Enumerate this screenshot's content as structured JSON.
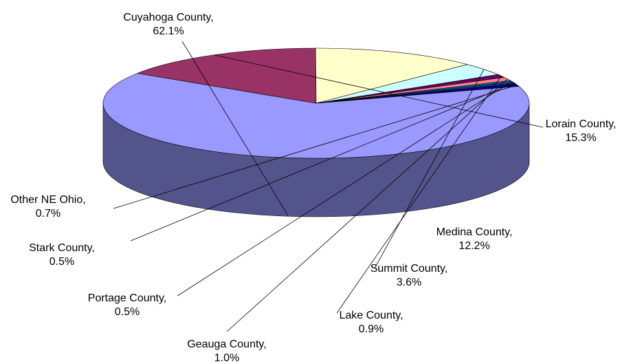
{
  "chart_data": {
    "type": "pie3d",
    "categories": [
      "Cuyahoga County,",
      "Lorain County,",
      "Medina County,",
      "Summit County,",
      "Lake County,",
      "Geauga County,",
      "Portage County,",
      "Stark County,",
      "Other NE Ohio,"
    ],
    "values": [
      62.1,
      15.3,
      12.2,
      3.6,
      0.9,
      1.0,
      0.5,
      0.5,
      0.7
    ],
    "value_labels": [
      "62.1%",
      "15.3%",
      "12.2%",
      "3.6%",
      "0.9%",
      "1.0%",
      "0.5%",
      "0.5%",
      "0.7%"
    ],
    "colors": [
      "#9999ff",
      "#993366",
      "#ffffcc",
      "#ccffff",
      "#660066",
      "#ff8080",
      "#0066cc",
      "#1f3b8f",
      "#000080"
    ]
  }
}
